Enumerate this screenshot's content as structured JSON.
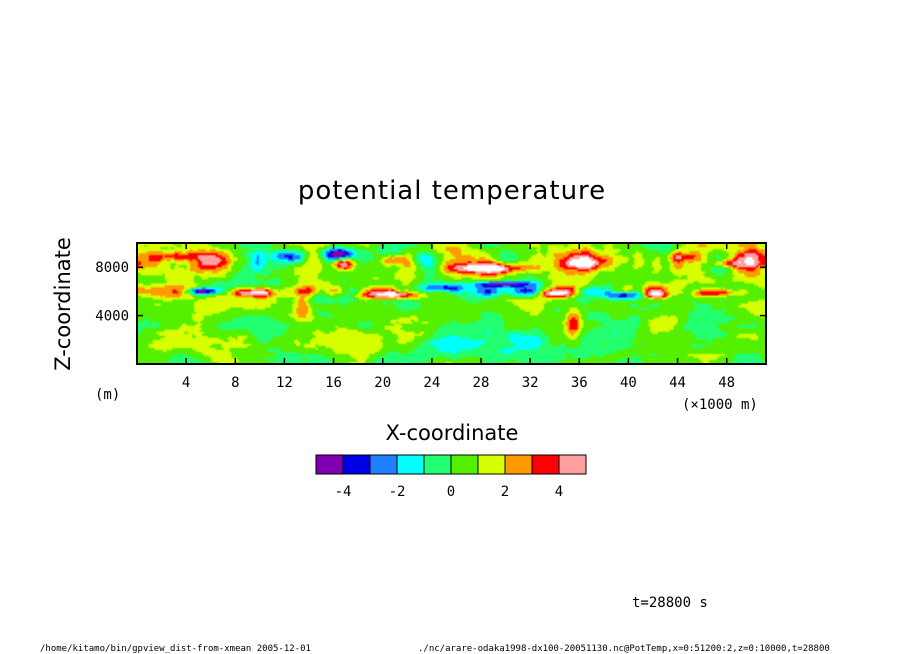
{
  "chart_data": {
    "type": "heatmap",
    "title": "potential temperature",
    "xlabel": "X-coordinate",
    "ylabel": "Z-coordinate",
    "x_unit": "(×1000 m)",
    "y_unit": "(m)",
    "xlim": [
      0,
      51.2
    ],
    "ylim": [
      0,
      10000
    ],
    "x_ticks": [
      4,
      8,
      12,
      16,
      20,
      24,
      28,
      32,
      36,
      40,
      44,
      48
    ],
    "y_ticks": [
      4000,
      8000
    ],
    "colorbar": {
      "levels": [
        -5,
        -4,
        -3,
        -2,
        -1,
        0,
        1,
        2,
        3,
        4,
        5
      ],
      "colors": [
        "#7f00b0",
        "#0000e6",
        "#1f7fff",
        "#00ffff",
        "#22ff70",
        "#55f000",
        "#d8ff00",
        "#ff9a00",
        "#ff0000",
        "#ff9f9f"
      ],
      "tick_labels": [
        "-4",
        "-2",
        "0",
        "2",
        "4"
      ],
      "tick_values": [
        -4,
        -2,
        0,
        2,
        4
      ]
    },
    "time_label": "t=28800 s"
  },
  "footer": {
    "left": "/home/kitamo/bin/gpview_dist-from-xmean  2005-12-01",
    "right": "./nc/arare-odaka1998-dx100-20051130.nc@PotTemp,x=0:51200:2,z=0:10000,t=28800"
  }
}
